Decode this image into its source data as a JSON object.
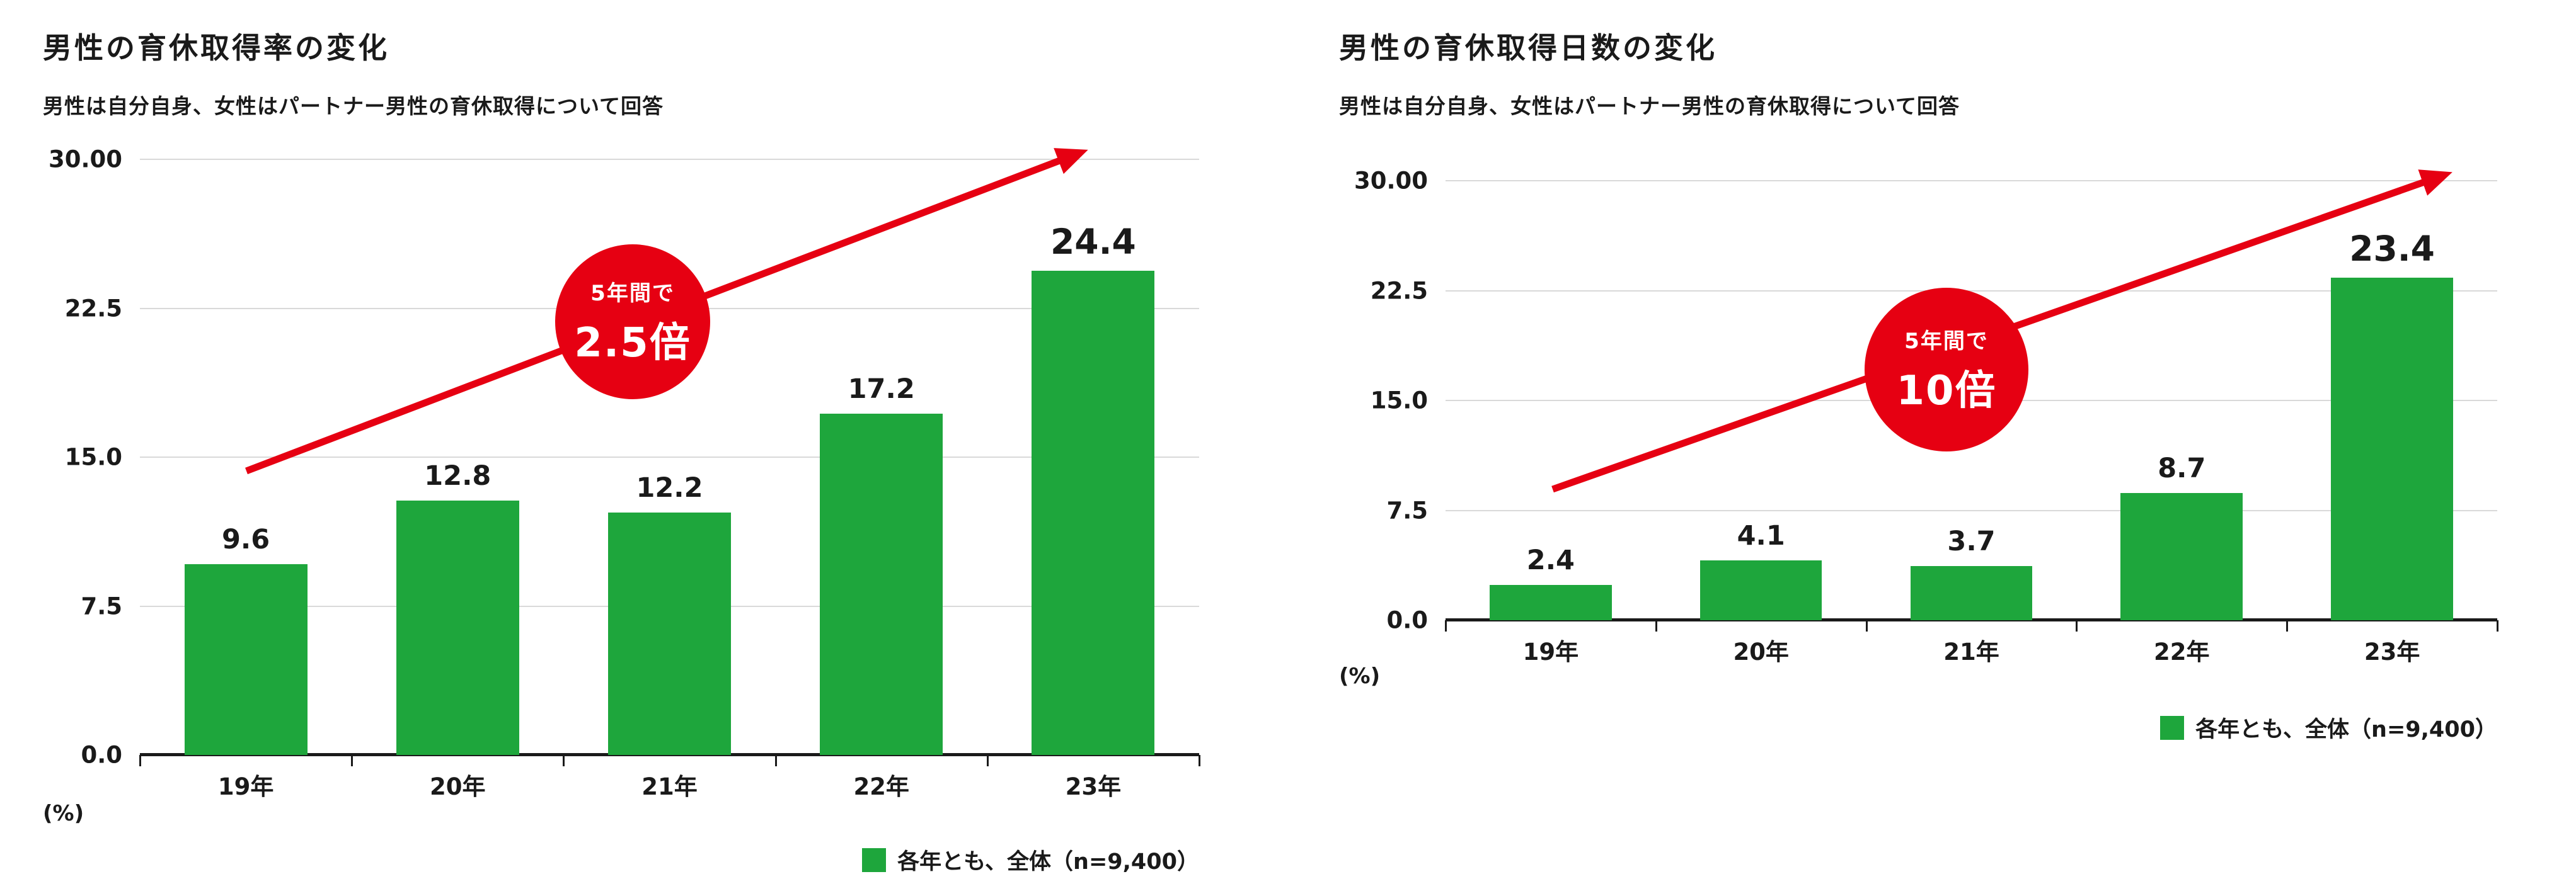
{
  "colors": {
    "bar_green": "#1ea63c",
    "accent_red": "#e60012",
    "text_dark": "#1a1a1a",
    "gridline": "#d9d9d9",
    "background": "#ffffff"
  },
  "chart_data": [
    {
      "type": "bar",
      "title": "男性の育休取得率の変化",
      "subtitle": "男性は自分自身、女性はパートナー男性の育休取得について回答",
      "categories": [
        "19年",
        "20年",
        "21年",
        "22年",
        "23年"
      ],
      "values": [
        9.6,
        12.8,
        12.2,
        17.2,
        24.4
      ],
      "xlabel": "",
      "ylabel": "(%)",
      "ylim": [
        0,
        30
      ],
      "yticks": [
        "30.00",
        "22.5",
        "15.0",
        "7.5",
        "0.0"
      ],
      "grid": true,
      "unit_label": "(%)",
      "bar_color": "#1ea63c",
      "legend": {
        "label": "各年とも、全体（n=9,400）",
        "swatch_color": "#1ea63c",
        "position": "bottom-right"
      },
      "badge": {
        "line1": "5年間で",
        "line2": "2.5倍"
      },
      "annotation": "red-up-trend-arrow"
    },
    {
      "type": "bar",
      "title": "男性の育休取得日数の変化",
      "subtitle": "男性は自分自身、女性はパートナー男性の育休取得について回答",
      "categories": [
        "19年",
        "20年",
        "21年",
        "22年",
        "23年"
      ],
      "values": [
        2.4,
        4.1,
        3.7,
        8.7,
        23.4
      ],
      "xlabel": "",
      "ylabel": "(%)",
      "ylim": [
        0,
        30
      ],
      "yticks": [
        "30.00",
        "22.5",
        "15.0",
        "7.5",
        "0.0"
      ],
      "grid": true,
      "unit_label": "(%)",
      "bar_color": "#1ea63c",
      "legend": {
        "label": "各年とも、全体（n=9,400）",
        "swatch_color": "#1ea63c",
        "position": "bottom-right"
      },
      "badge": {
        "line1": "5年間で",
        "line2": "10倍"
      },
      "annotation": "red-up-trend-arrow"
    }
  ]
}
